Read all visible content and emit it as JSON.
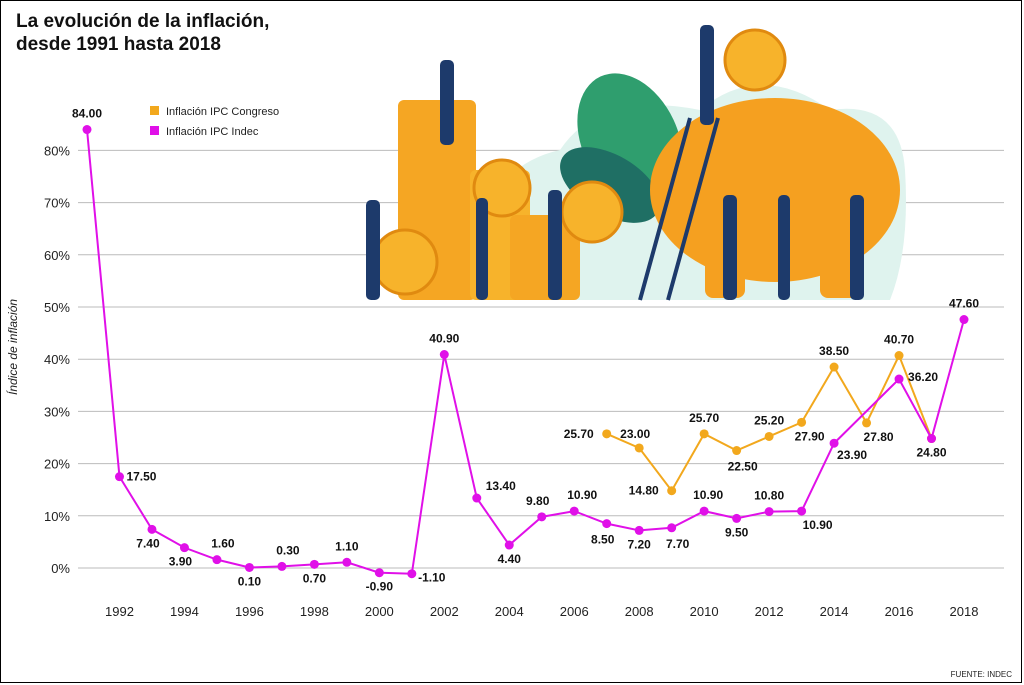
{
  "title_line1": "La evolución de la inflación,",
  "title_line2": "desde 1991 hasta 2018",
  "source": "FUENTE: INDEC",
  "colors": {
    "congreso": "#f2a81d",
    "indec": "#e010e8",
    "grid": "#bbbbbb",
    "coin": "#f7b32b",
    "pig": "#f5a020",
    "leaf": "#2f9e6e"
  },
  "chart_data": {
    "type": "line",
    "ylabel": "Índice de inflación",
    "y_ticks": [
      "0%",
      "10%",
      "20%",
      "30%",
      "40%",
      "50%",
      "60%",
      "70%",
      "80%"
    ],
    "y_tick_values": [
      0,
      10,
      20,
      30,
      40,
      50,
      60,
      70,
      80
    ],
    "ylim": [
      -5,
      88
    ],
    "x_ticks": [
      1992,
      1994,
      1996,
      1998,
      2000,
      2002,
      2004,
      2006,
      2008,
      2010,
      2012,
      2014,
      2016,
      2018
    ],
    "xlim": [
      1991,
      2018
    ],
    "grid": true,
    "legend_position": "top-left",
    "series": [
      {
        "name": "Inflación IPC Congreso",
        "color": "#f2a81d",
        "x": [
          2007,
          2008,
          2009,
          2010,
          2011,
          2012,
          2013,
          2014,
          2015,
          2016,
          2017
        ],
        "values": [
          25.7,
          23.0,
          14.8,
          25.7,
          22.5,
          25.2,
          27.9,
          38.5,
          27.8,
          40.7,
          24.8
        ],
        "labels": [
          "25.70",
          "23.00",
          "14.80",
          "25.70",
          "22.50",
          "25.20",
          "27.90",
          "38.50",
          "27.80",
          "40.70",
          "24.80"
        ]
      },
      {
        "name": "Inflación IPC Indec",
        "color": "#e010e8",
        "x": [
          1991,
          1992,
          1993,
          1994,
          1995,
          1996,
          1997,
          1998,
          1999,
          2000,
          2001,
          2002,
          2003,
          2004,
          2005,
          2006,
          2007,
          2008,
          2009,
          2010,
          2011,
          2012,
          2013,
          2014,
          2016,
          2017,
          2018
        ],
        "values": [
          84.0,
          17.5,
          7.4,
          3.9,
          1.6,
          0.1,
          0.3,
          0.7,
          1.1,
          -0.9,
          -1.1,
          40.9,
          13.4,
          4.4,
          9.8,
          10.9,
          8.5,
          7.2,
          7.7,
          10.9,
          9.5,
          10.8,
          10.9,
          23.9,
          36.2,
          24.8,
          47.6
        ],
        "labels": [
          "84.00",
          "17.50",
          "7.40",
          "3.90",
          "1.60",
          "0.10",
          "0.30",
          "0.70",
          "1.10",
          "-0.90",
          "-1.10",
          "40.90",
          "13.40",
          "4.40",
          "9.80",
          "10.90",
          "8.50",
          "7.20",
          "7.70",
          "10.90",
          "9.50",
          "10.80",
          "10.90",
          "23.90",
          "36.20",
          "",
          "47.60"
        ]
      }
    ]
  }
}
